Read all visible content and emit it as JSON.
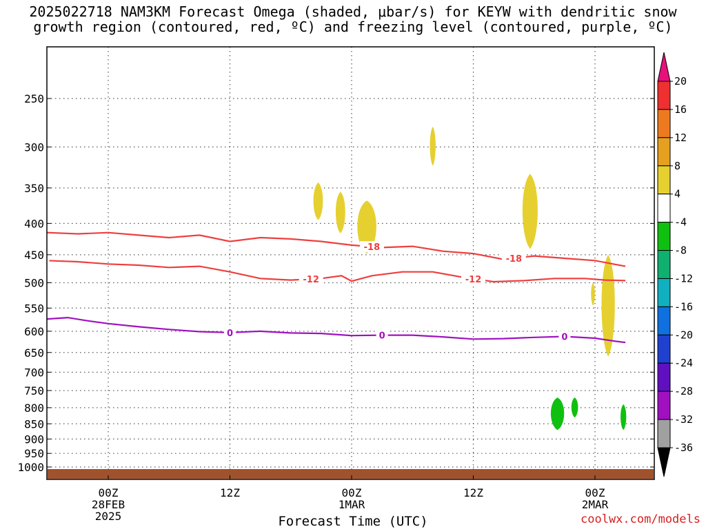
{
  "chart_data": {
    "type": "heatmap",
    "title_line1": "2025022718 NAM3KM Forecast Omega (shaded, μbar/s) for KEYW with dendritic snow",
    "title_line2": "growth region (contoured, red, ºC) and freezing level (contoured, purple, ºC)",
    "xlabel": "Forecast Time (UTC)",
    "ylabel": "",
    "y_scale": "log-pressure (hPa)",
    "ylim": [
      1000,
      250
    ],
    "y_ticks": [
      "250",
      "300",
      "350",
      "400",
      "450",
      "500",
      "550",
      "600",
      "650",
      "700",
      "750",
      "800",
      "850",
      "900",
      "950",
      "1000"
    ],
    "x_range_hours": [
      -9,
      51
    ],
    "x_ticks": [
      {
        "hours": 0,
        "label": "00Z",
        "sub1": "28FEB",
        "sub2": "2025"
      },
      {
        "hours": 12,
        "label": "12Z",
        "sub1": "",
        "sub2": ""
      },
      {
        "hours": 24,
        "label": "00Z",
        "sub1": "1MAR",
        "sub2": ""
      },
      {
        "hours": 36,
        "label": "12Z",
        "sub1": "",
        "sub2": ""
      },
      {
        "hours": 48,
        "label": "00Z",
        "sub1": "2MAR",
        "sub2": ""
      }
    ],
    "grid": true,
    "colorbar": {
      "labels": [
        "20",
        "16",
        "12",
        "8",
        "4",
        "-4",
        "-8",
        "-12",
        "-16",
        "-20",
        "-24",
        "-28",
        "-32",
        "-36"
      ],
      "colors": [
        "#e8107a",
        "#ee3030",
        "#ee7a20",
        "#e6a020",
        "#e6d030",
        "#ffffff",
        "#10c010",
        "#10b070",
        "#10b0c0",
        "#1070e0",
        "#2040d0",
        "#6010c0",
        "#a010c0",
        "#a0a0a0",
        "#000000"
      ]
    },
    "contours": [
      {
        "name": "-18",
        "color": "#ee3e3e",
        "label_positions_hours": [
          26,
          40
        ],
        "points": [
          [
            -9,
            417
          ],
          [
            -6,
            414
          ],
          [
            -3,
            416
          ],
          [
            0,
            414
          ],
          [
            3,
            418
          ],
          [
            6,
            422
          ],
          [
            9,
            418
          ],
          [
            12,
            428
          ],
          [
            15,
            422
          ],
          [
            18,
            424
          ],
          [
            21,
            428
          ],
          [
            24,
            434
          ],
          [
            27,
            438
          ],
          [
            30,
            436
          ],
          [
            33,
            444
          ],
          [
            36,
            448
          ],
          [
            39,
            458
          ],
          [
            42,
            452
          ],
          [
            45,
            456
          ],
          [
            48,
            460
          ],
          [
            51,
            470
          ]
        ]
      },
      {
        "name": "-12",
        "color": "#ee3e3e",
        "label_positions_hours": [
          -7,
          20,
          36
        ],
        "points": [
          [
            -9,
            456
          ],
          [
            -6,
            460
          ],
          [
            -3,
            462
          ],
          [
            0,
            466
          ],
          [
            3,
            468
          ],
          [
            6,
            472
          ],
          [
            9,
            470
          ],
          [
            12,
            480
          ],
          [
            15,
            492
          ],
          [
            18,
            495
          ],
          [
            21,
            492
          ],
          [
            23,
            487
          ],
          [
            24,
            497
          ],
          [
            26,
            487
          ],
          [
            29,
            480
          ],
          [
            32,
            480
          ],
          [
            35,
            490
          ],
          [
            38,
            498
          ],
          [
            41,
            496
          ],
          [
            44,
            492
          ],
          [
            47,
            492
          ],
          [
            49,
            495
          ],
          [
            51,
            496
          ]
        ]
      },
      {
        "name": "0",
        "color": "#a010c0",
        "label_positions_hours": [
          12,
          27,
          45
        ],
        "points": [
          [
            -9,
            579
          ],
          [
            -6,
            573
          ],
          [
            -4,
            570
          ],
          [
            -2,
            577
          ],
          [
            0,
            583
          ],
          [
            3,
            590
          ],
          [
            6,
            596
          ],
          [
            9,
            601
          ],
          [
            12,
            603
          ],
          [
            15,
            600
          ],
          [
            18,
            604
          ],
          [
            21,
            605
          ],
          [
            24,
            610
          ],
          [
            27,
            609
          ],
          [
            30,
            609
          ],
          [
            33,
            613
          ],
          [
            36,
            618
          ],
          [
            39,
            617
          ],
          [
            42,
            614
          ],
          [
            45,
            612
          ],
          [
            48,
            616
          ],
          [
            50,
            623
          ],
          [
            51,
            626
          ]
        ]
      }
    ],
    "shaded_regions": [
      {
        "level": "4",
        "color": "#e6d030",
        "hours": 20.7,
        "half_width_hours": 0.5,
        "p_top": 343,
        "p_bot": 395
      },
      {
        "level": "4",
        "color": "#e6d030",
        "hours": 22.9,
        "half_width_hours": 0.5,
        "p_top": 355,
        "p_bot": 415
      },
      {
        "level": "4",
        "color": "#e6d030",
        "hours": 25.5,
        "half_width_hours": 1.0,
        "p_top": 367,
        "p_bot": 448
      },
      {
        "level": "4",
        "color": "#e6d030",
        "hours": 32.0,
        "half_width_hours": 0.3,
        "p_top": 278,
        "p_bot": 322
      },
      {
        "level": "4",
        "color": "#e6d030",
        "hours": 41.6,
        "half_width_hours": 0.8,
        "p_top": 332,
        "p_bot": 440
      },
      {
        "level": "4",
        "color": "#e6d030",
        "hours": 47.8,
        "half_width_hours": 0.2,
        "p_top": 500,
        "p_bot": 545
      },
      {
        "level": "4",
        "color": "#e6d030",
        "hours": 49.3,
        "half_width_hours": 0.7,
        "p_top": 450,
        "p_bot": 660
      },
      {
        "level": "-4",
        "color": "#10c010",
        "hours": 44.3,
        "half_width_hours": 0.7,
        "p_top": 770,
        "p_bot": 870
      },
      {
        "level": "-4",
        "color": "#10c010",
        "hours": 46.0,
        "half_width_hours": 0.35,
        "p_top": 770,
        "p_bot": 830
      },
      {
        "level": "-4",
        "color": "#10c010",
        "hours": 50.8,
        "half_width_hours": 0.3,
        "p_top": 790,
        "p_bot": 870
      }
    ],
    "ground_color": "#a0522d"
  },
  "credit": "coolwx.com/models"
}
